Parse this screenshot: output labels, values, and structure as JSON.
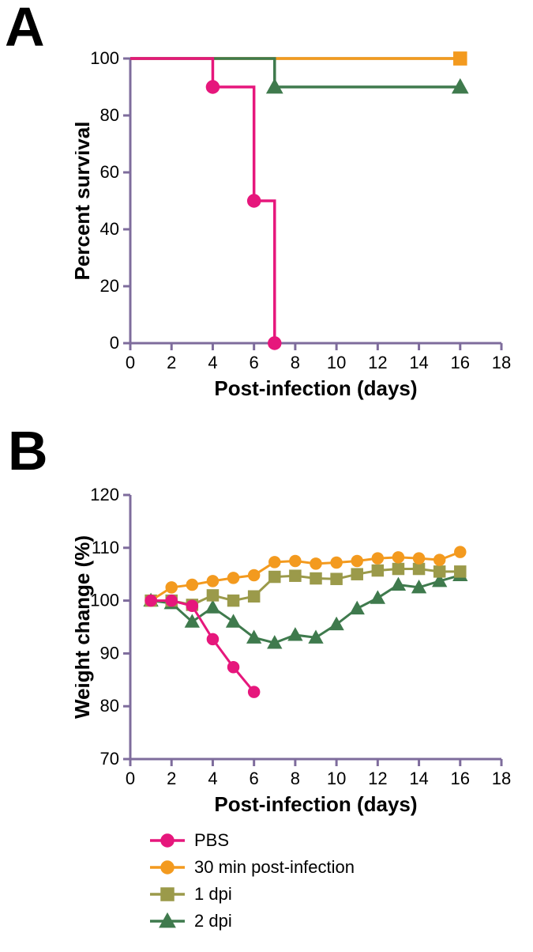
{
  "panels": {
    "labelA": "A",
    "labelB": "B",
    "label_fontsize": 70
  },
  "colors": {
    "axis": "#7e6c9c",
    "text": "#000000",
    "pbs": "#e6177c",
    "thirty_min": "#f39a1f",
    "one_dpi": "#9b9a4a",
    "two_dpi": "#3f7a4d",
    "background": "#ffffff"
  },
  "legend": {
    "items": [
      {
        "key": "pbs",
        "label": "PBS",
        "marker": "circle"
      },
      {
        "key": "thirty_min",
        "label": "30 min post-infection",
        "marker": "circle"
      },
      {
        "key": "one_dpi",
        "label": "1 dpi",
        "marker": "square"
      },
      {
        "key": "two_dpi",
        "label": "2 dpi",
        "marker": "triangle"
      }
    ],
    "fontsize": 22
  },
  "chartA": {
    "type": "survival-step",
    "xlabel": "Post-infection (days)",
    "ylabel": "Percent survival",
    "label_fontsize": 26,
    "tick_fontsize": 22,
    "xlim": [
      0,
      18
    ],
    "ylim": [
      0,
      100
    ],
    "xtick_step": 2,
    "ytick_step": 20,
    "axis_color": "#7e6c9c",
    "line_width": 3.5,
    "marker_size": 8,
    "series": {
      "pbs": {
        "color": "#e6177c",
        "marker": "circle",
        "points": [
          [
            0,
            100
          ],
          [
            4,
            100
          ],
          [
            4,
            90
          ],
          [
            6,
            90
          ],
          [
            6,
            50
          ],
          [
            7,
            50
          ],
          [
            7,
            0
          ]
        ],
        "markers_at": [
          [
            4,
            90
          ],
          [
            6,
            50
          ],
          [
            7,
            0
          ]
        ]
      },
      "thirty_min": {
        "color": "#f39a1f",
        "marker": "square",
        "points": [
          [
            0,
            100
          ],
          [
            16,
            100
          ]
        ],
        "markers_at": [
          [
            16,
            100
          ]
        ]
      },
      "one_dpi": {
        "color": "#9b9a4a",
        "marker": "square",
        "points": [
          [
            0,
            100
          ],
          [
            16,
            100
          ]
        ],
        "markers_at": []
      },
      "two_dpi": {
        "color": "#3f7a4d",
        "marker": "triangle",
        "points": [
          [
            0,
            100
          ],
          [
            7,
            100
          ],
          [
            7,
            90
          ],
          [
            16,
            90
          ]
        ],
        "markers_at": [
          [
            7,
            90
          ],
          [
            16,
            90
          ]
        ]
      }
    }
  },
  "chartB": {
    "type": "line",
    "xlabel": "Post-infection (days)",
    "ylabel": "Weight change (%)",
    "label_fontsize": 26,
    "tick_fontsize": 22,
    "xlim": [
      0,
      18
    ],
    "ylim": [
      70,
      120
    ],
    "xtick_step": 2,
    "ytick_step": 10,
    "axis_color": "#7e6c9c",
    "line_width": 3,
    "marker_size": 7,
    "series": {
      "pbs": {
        "color": "#e6177c",
        "marker": "circle",
        "x": [
          1,
          2,
          3,
          4,
          5,
          6
        ],
        "y": [
          100,
          100,
          99,
          92.7,
          87.4,
          82.7
        ]
      },
      "thirty_min": {
        "color": "#f39a1f",
        "marker": "circle",
        "x": [
          1,
          2,
          3,
          4,
          5,
          6,
          7,
          8,
          9,
          10,
          11,
          12,
          13,
          14,
          15,
          16
        ],
        "y": [
          100,
          102.5,
          103,
          103.7,
          104.3,
          104.8,
          107.3,
          107.5,
          107,
          107.2,
          107.5,
          108,
          108.2,
          108,
          107.7,
          109.2
        ]
      },
      "one_dpi": {
        "color": "#9b9a4a",
        "marker": "square",
        "x": [
          1,
          2,
          3,
          4,
          5,
          6,
          7,
          8,
          9,
          10,
          11,
          12,
          13,
          14,
          15,
          16
        ],
        "y": [
          100,
          100,
          99.2,
          101,
          100,
          100.8,
          104.5,
          104.7,
          104.2,
          104.1,
          105,
          105.7,
          106,
          106,
          105.5,
          105.5
        ]
      },
      "two_dpi": {
        "color": "#3f7a4d",
        "marker": "triangle",
        "x": [
          1,
          2,
          3,
          4,
          5,
          6,
          7,
          8,
          9,
          10,
          11,
          12,
          13,
          14,
          15,
          16
        ],
        "y": [
          100,
          99.5,
          96,
          98.7,
          96,
          93,
          92,
          93.5,
          93,
          95.5,
          98.5,
          100.5,
          103,
          102.5,
          103.7,
          104.8
        ]
      }
    }
  }
}
